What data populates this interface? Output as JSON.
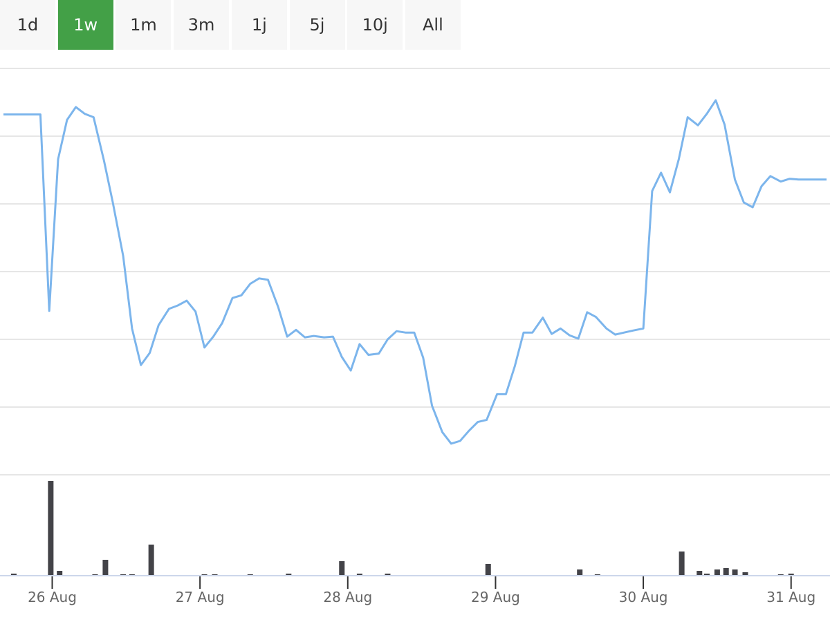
{
  "buttons": [
    "1d",
    "1w",
    "1m",
    "3m",
    "1j",
    "5j",
    "10j",
    "All"
  ],
  "selected_button": 1,
  "chart_data": [
    {
      "type": "line",
      "color": "#7cb5ec",
      "grid": true,
      "xlim": [
        -0.33,
        5.24
      ],
      "ylim": [
        0,
        6
      ],
      "yticks": [
        0,
        1,
        2,
        3,
        4,
        5,
        6
      ],
      "xticks": [
        {
          "value": 0,
          "label": "26 Aug"
        },
        {
          "value": 1,
          "label": "27 Aug"
        },
        {
          "value": 2,
          "label": "28 Aug"
        },
        {
          "value": 3,
          "label": "29 Aug"
        },
        {
          "value": 4,
          "label": "30 Aug"
        },
        {
          "value": 5,
          "label": "31 Aug"
        }
      ],
      "x": [
        -0.33,
        -0.08,
        -0.02,
        0.04,
        0.1,
        0.16,
        0.22,
        0.28,
        0.35,
        0.41,
        0.48,
        0.54,
        0.6,
        0.66,
        0.72,
        0.79,
        0.85,
        0.91,
        0.97,
        1.03,
        1.09,
        1.15,
        1.22,
        1.28,
        1.34,
        1.4,
        1.46,
        1.53,
        1.59,
        1.65,
        1.71,
        1.77,
        1.84,
        1.9,
        1.96,
        2.02,
        2.08,
        2.14,
        2.21,
        2.27,
        2.33,
        2.39,
        2.45,
        2.51,
        2.57,
        2.64,
        2.7,
        2.76,
        2.82,
        2.88,
        2.94,
        3.01,
        3.07,
        3.13,
        3.19,
        3.25,
        3.32,
        3.38,
        3.44,
        3.5,
        3.56,
        3.62,
        3.68,
        3.75,
        3.81,
        3.87,
        3.93,
        4.0,
        4.06,
        4.12,
        4.18,
        4.24,
        4.3,
        4.37,
        4.43,
        4.49,
        4.55,
        4.62,
        4.68,
        4.74,
        4.8,
        4.86,
        4.93,
        4.99,
        5.05,
        5.11,
        5.24
      ],
      "values": [
        5.32,
        5.32,
        2.42,
        4.66,
        5.24,
        5.43,
        5.33,
        5.28,
        4.64,
        4.02,
        3.23,
        2.16,
        1.62,
        1.8,
        2.21,
        2.45,
        2.5,
        2.57,
        2.41,
        1.88,
        2.04,
        2.24,
        2.61,
        2.65,
        2.82,
        2.9,
        2.88,
        2.47,
        2.04,
        2.14,
        2.03,
        2.05,
        2.03,
        2.04,
        1.74,
        1.54,
        1.93,
        1.77,
        1.79,
        2.0,
        2.12,
        2.1,
        2.1,
        1.73,
        1.02,
        0.63,
        0.46,
        0.5,
        0.65,
        0.78,
        0.81,
        1.19,
        1.19,
        1.6,
        2.1,
        2.1,
        2.32,
        2.08,
        2.16,
        2.06,
        2.01,
        2.4,
        2.33,
        2.16,
        2.07,
        2.1,
        2.13,
        2.16,
        4.19,
        4.46,
        4.17,
        4.66,
        5.28,
        5.16,
        5.33,
        5.53,
        5.17,
        4.36,
        4.02,
        3.95,
        4.26,
        4.41,
        4.33,
        4.37,
        4.36,
        4.36,
        4.36
      ]
    },
    {
      "type": "bar",
      "color": "#434348",
      "xlim": [
        -0.33,
        5.24
      ],
      "ylim": [
        0,
        146
      ],
      "x": [
        -0.26,
        -0.01,
        0.05,
        0.29,
        0.36,
        0.48,
        0.54,
        0.67,
        1.03,
        1.1,
        1.34,
        1.6,
        1.96,
        2.08,
        2.27,
        2.95,
        3.57,
        3.69,
        4.26,
        4.38,
        4.43,
        4.5,
        4.56,
        4.62,
        4.69,
        4.93,
        5.0
      ],
      "values": [
        3,
        137,
        7,
        2,
        23,
        2,
        2,
        45,
        2,
        2,
        2,
        3,
        21,
        3,
        3,
        17,
        9,
        2,
        35,
        7,
        3,
        9,
        11,
        9,
        5,
        2,
        3
      ]
    }
  ]
}
